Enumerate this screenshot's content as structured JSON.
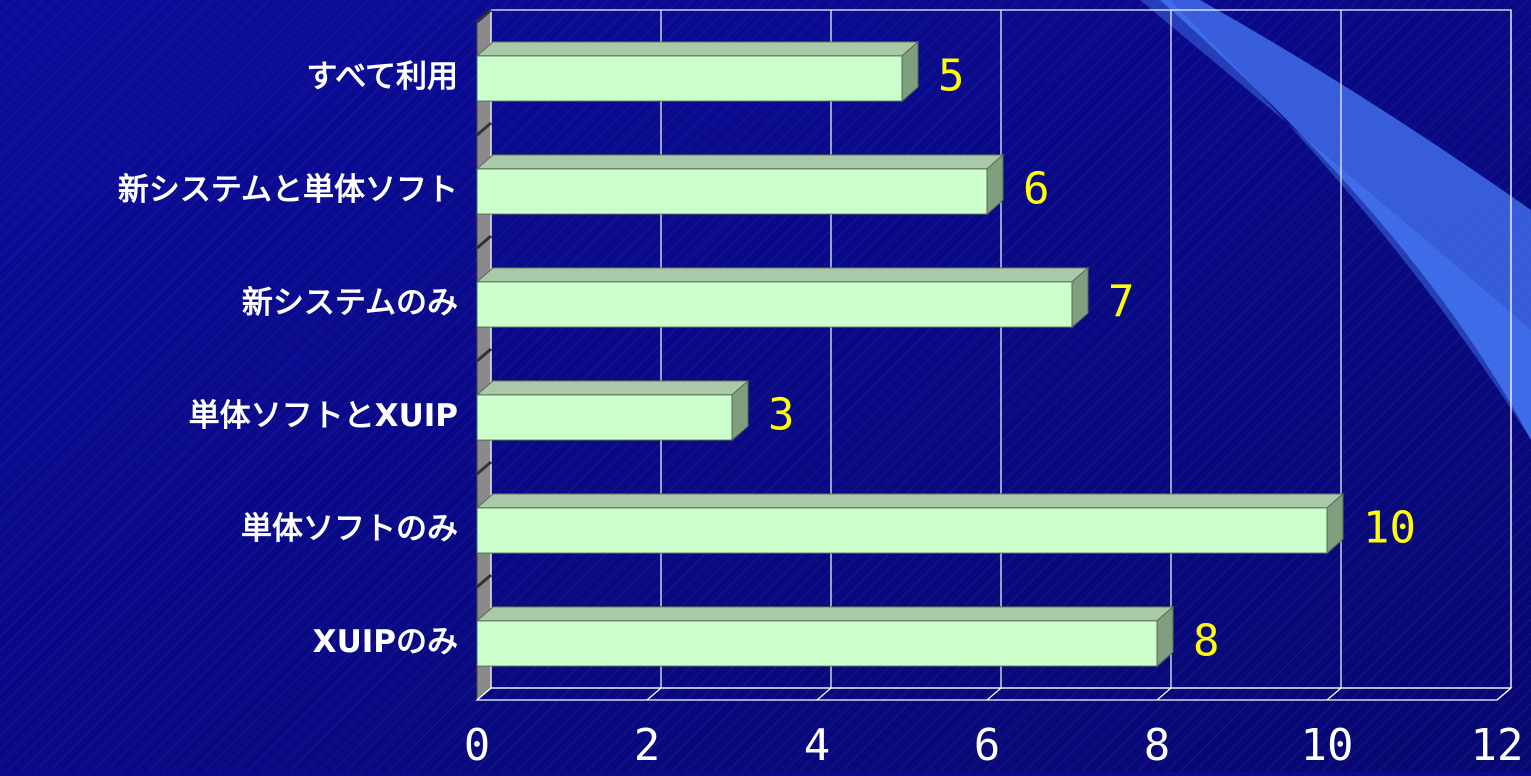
{
  "chart_data": {
    "type": "bar",
    "orientation": "horizontal",
    "categories": [
      "すべて利用",
      "新システムと単体ソフト",
      "新システムのみ",
      "単体ソフトとXUIP",
      "単体ソフトのみ",
      "XUIPのみ"
    ],
    "values": [
      5,
      6,
      7,
      3,
      10,
      8
    ],
    "color": "#ccffcc",
    "xlim": [
      0,
      12
    ],
    "xticks": [
      0,
      2,
      4,
      6,
      8,
      10,
      12
    ],
    "grid": true
  }
}
